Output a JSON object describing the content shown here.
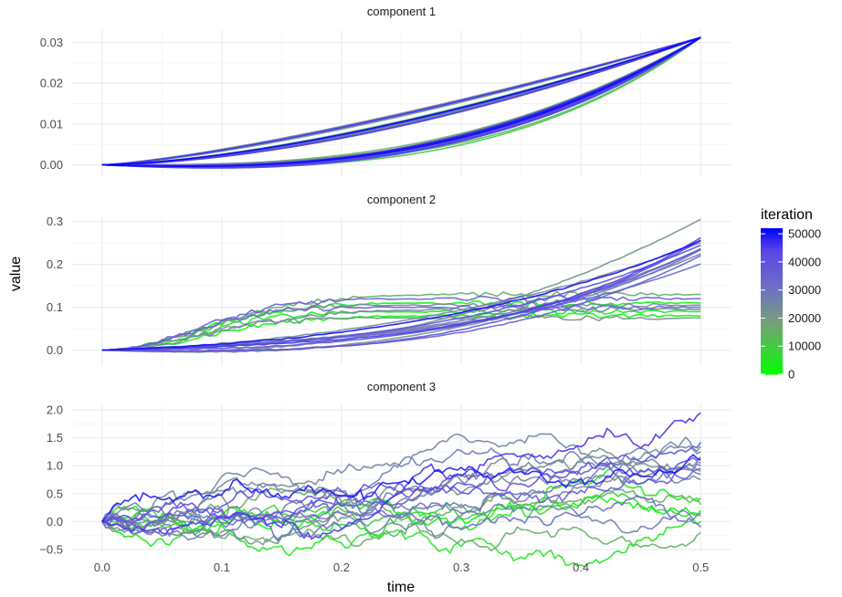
{
  "chart_data": {
    "type": "line",
    "xlabel": "time",
    "ylabel": "value",
    "x_range": [
      0,
      0.5
    ],
    "x_ticks": [
      "0.0",
      "0.1",
      "0.2",
      "0.3",
      "0.4",
      "0.5"
    ],
    "grid": true,
    "legend": {
      "title": "iteration",
      "position": "right",
      "type": "colorbar",
      "range": [
        0,
        52000
      ],
      "low_color": "#00ff00",
      "high_color": "#0000ff",
      "ticks": [
        "0",
        "10000",
        "20000",
        "30000",
        "40000",
        "50000"
      ]
    },
    "panels": [
      {
        "strip_label": "component 1",
        "ylim": [
          -0.003,
          0.033
        ],
        "y_ticks": [
          "0.00",
          "0.01",
          "0.02",
          "0.03"
        ],
        "curve_families": [
          {
            "description_values": "upper family",
            "end_value": 0.0312,
            "exponent": 1.5,
            "members": 14
          },
          {
            "description_values": "lower family",
            "end_value": 0.0312,
            "exponent": 3.0,
            "members": 26
          }
        ]
      },
      {
        "strip_label": "component 2",
        "ylim": [
          -0.035,
          0.31
        ],
        "y_ticks": [
          "0.0",
          "0.1",
          "0.2",
          "0.3"
        ],
        "end_values_rising": [
          0.21,
          0.22,
          0.23,
          0.235,
          0.24,
          0.245,
          0.25,
          0.255,
          0.26,
          0.265,
          0.27,
          0.3
        ],
        "end_values_flat": [
          0.075,
          0.08,
          0.09,
          0.095,
          0.1,
          0.105,
          0.11,
          0.12,
          0.13
        ]
      },
      {
        "strip_label": "component 3",
        "ylim": [
          -0.55,
          2.1
        ],
        "y_ticks": [
          "−0.5",
          "0.0",
          "0.5",
          "1.0",
          "1.5",
          "2.0"
        ],
        "end_values_upper": [
          0.75,
          0.85,
          0.9,
          0.95,
          1.0,
          1.05,
          1.1,
          1.15,
          1.25,
          1.35,
          1.42,
          1.95
        ],
        "end_values_lower": [
          -0.2,
          -0.1,
          0.0,
          0.1,
          0.15,
          0.2,
          0.3,
          0.42
        ]
      }
    ],
    "iteration_max": 52000
  },
  "colors": {
    "panel_background": "#ffffff",
    "grid_major": "#ebebeb",
    "grid_minor": "#f5f5f5"
  }
}
